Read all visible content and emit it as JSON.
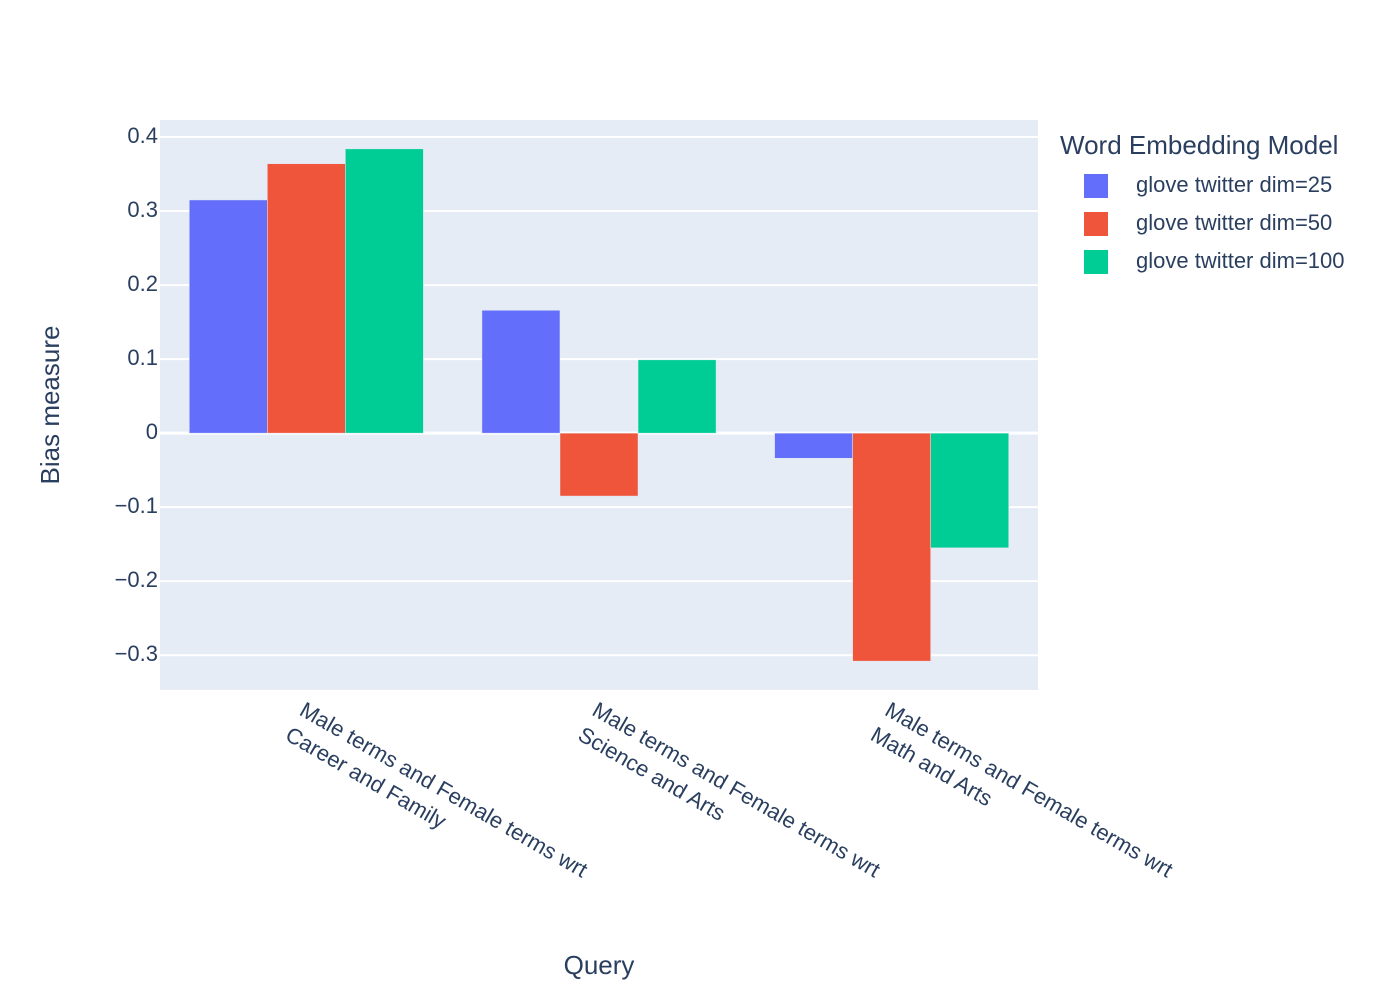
{
  "chart_data": {
    "type": "bar",
    "x_label": "Query",
    "y_label": "Bias measure",
    "legend_title": "Word Embedding Model",
    "legend_position": "right",
    "grid": true,
    "categories": [
      [
        "Male terms and Female terms wrt",
        "Career and Family"
      ],
      [
        "Male terms and Female terms wrt",
        "Science and Arts"
      ],
      [
        "Male terms and Female terms wrt",
        "Math and Arts"
      ]
    ],
    "series": [
      {
        "name": "glove twitter dim=25",
        "color": "#636efa",
        "values": [
          0.315,
          0.166,
          -0.034
        ]
      },
      {
        "name": "glove twitter dim=50",
        "color": "#ef553b",
        "values": [
          0.364,
          -0.085,
          -0.308
        ]
      },
      {
        "name": "glove twitter dim=100",
        "color": "#00cc96",
        "values": [
          0.384,
          0.099,
          -0.155
        ]
      }
    ],
    "ylim": [
      -0.347,
      0.423
    ],
    "yticks": [
      {
        "value": -0.3,
        "label": "−0.3"
      },
      {
        "value": -0.2,
        "label": "−0.2"
      },
      {
        "value": -0.1,
        "label": "−0.1"
      },
      0,
      0.1,
      0.2,
      0.3,
      0.4
    ]
  }
}
